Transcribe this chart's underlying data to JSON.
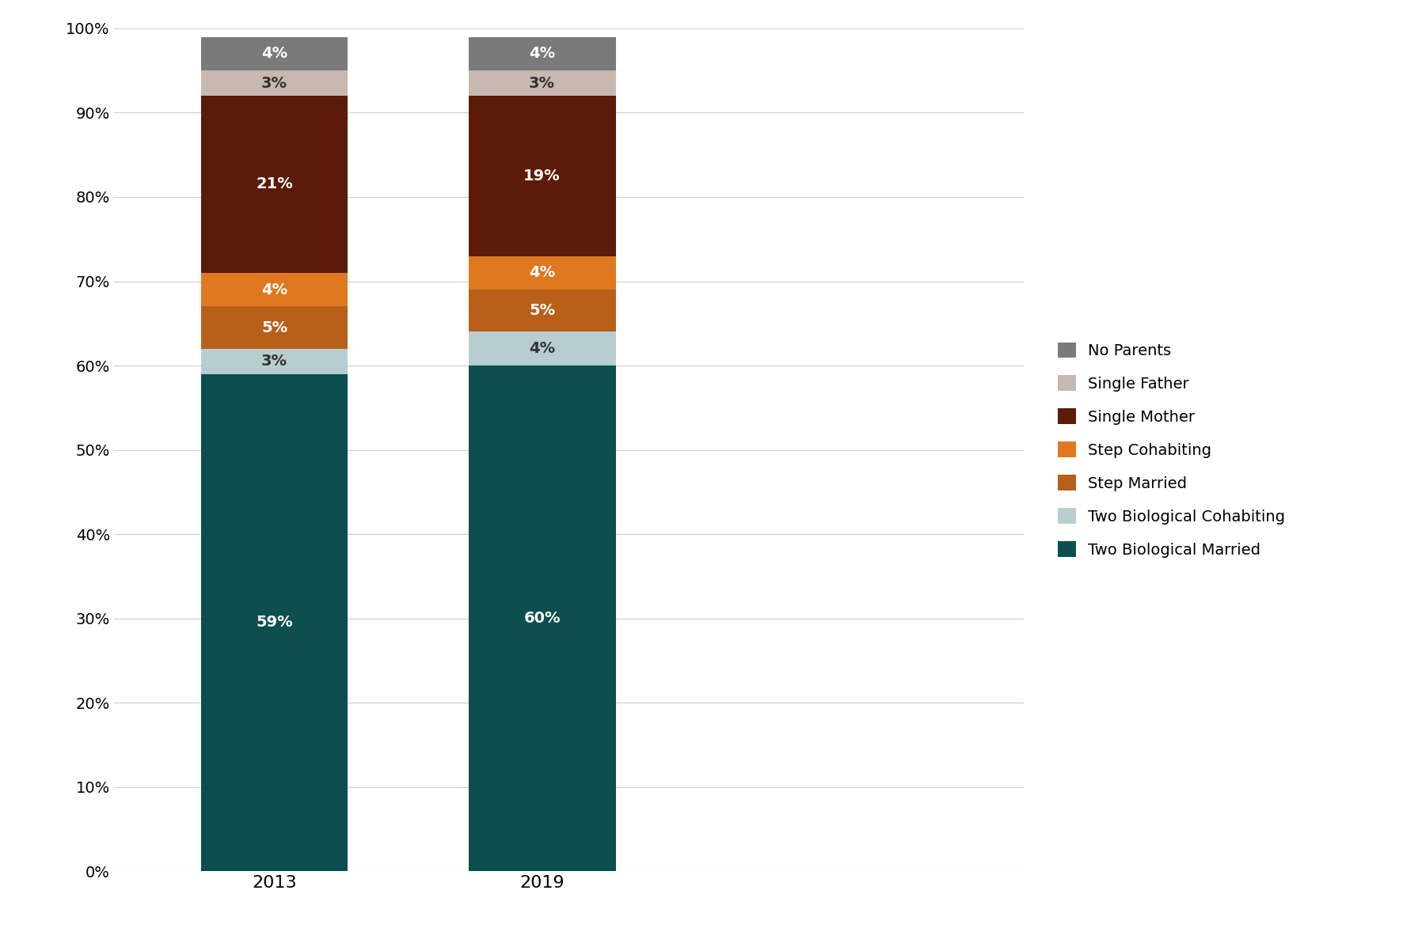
{
  "years": [
    "2013",
    "2019"
  ],
  "categories": [
    "Two Biological Married",
    "Two Biological Cohabiting",
    "Step Married",
    "Step Cohabiting",
    "Single Mother",
    "Single Father",
    "No Parents"
  ],
  "values": {
    "2013": [
      59,
      3,
      5,
      4,
      21,
      3,
      4
    ],
    "2019": [
      60,
      4,
      5,
      4,
      19,
      3,
      4
    ]
  },
  "colors": [
    "#0d4f4e",
    "#b8cdd0",
    "#b8601a",
    "#e07820",
    "#5c1a08",
    "#c8b8b0",
    "#7a7a7a"
  ],
  "label_colors": {
    "Two Biological Married": "white",
    "Two Biological Cohabiting": "#333333",
    "Step Married": "white",
    "Step Cohabiting": "white",
    "Single Mother": "white",
    "Single Father": "#333333",
    "No Parents": "white"
  },
  "ylim": [
    0,
    100
  ],
  "yticks": [
    0,
    10,
    20,
    30,
    40,
    50,
    60,
    70,
    80,
    90,
    100
  ],
  "ytick_labels": [
    "0%",
    "10%",
    "20%",
    "30%",
    "40%",
    "50%",
    "60%",
    "70%",
    "80%",
    "90%",
    "100%"
  ],
  "x_positions": [
    1,
    2
  ],
  "bar_width": 0.55,
  "xlim": [
    0.4,
    3.8
  ],
  "background_color": "#ffffff",
  "grid_color": "#cccccc",
  "label_fontsize": 14,
  "tick_fontsize": 14,
  "legend_fontsize": 14
}
